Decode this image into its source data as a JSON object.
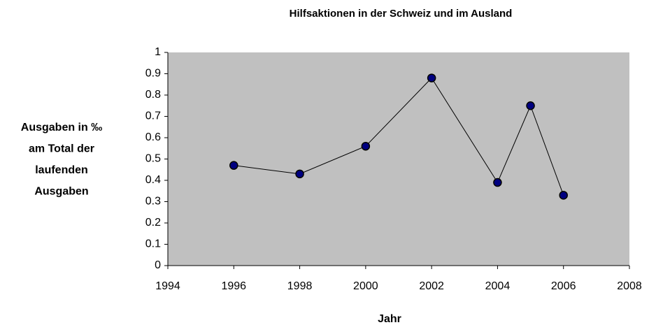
{
  "chart_data": {
    "type": "line",
    "title": "Hilfsaktionen in der Schweiz und im Ausland",
    "x_label": "Jahr",
    "y_label": [
      "Ausgaben in ‰",
      "am Total der",
      "laufenden",
      "Ausgaben"
    ],
    "x": [
      1996,
      1998,
      2000,
      2002,
      2004,
      2005,
      2006
    ],
    "series": [
      {
        "color": "#000080",
        "values": [
          0.47,
          0.43,
          0.56,
          0.88,
          0.39,
          0.75,
          0.33
        ]
      }
    ],
    "xlim": [
      1994,
      2008
    ],
    "xticks": [
      1994,
      1996,
      1998,
      2000,
      2002,
      2004,
      2006,
      2008
    ],
    "ylim": [
      0,
      1
    ],
    "yticks": [
      0,
      0.1,
      0.2,
      0.3,
      0.4,
      0.5,
      0.6,
      0.7,
      0.8,
      0.9,
      1
    ],
    "plot_background": "#c0c0c0"
  }
}
